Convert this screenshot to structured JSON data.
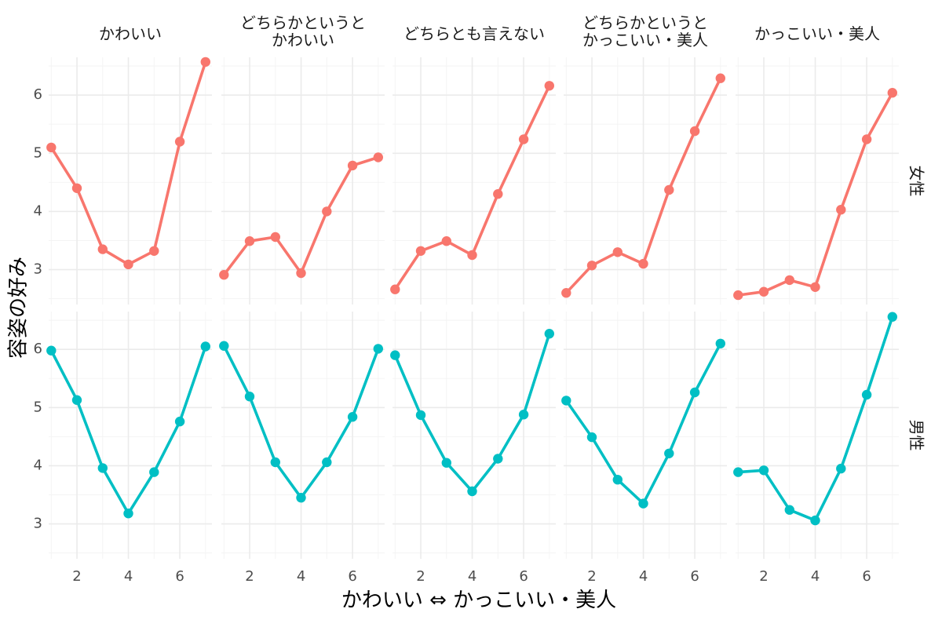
{
  "chart_data": {
    "type": "line",
    "xlabel": "かわいい ⇔ かっこいい・美人",
    "ylabel": "容姿の好み",
    "x_ticks": [
      2,
      4,
      6
    ],
    "y_ticks": [
      3,
      4,
      5,
      6
    ],
    "xlim": [
      0.9,
      7.25
    ],
    "ylim": [
      2.4,
      6.65
    ],
    "grid": true,
    "column_facets": [
      "かわいい",
      "どちらかというと\nかわいい",
      "どちらとも言えない",
      "どちらかというと\nかっこいい・美人",
      "かっこいい・美人"
    ],
    "row_facets": [
      "女性",
      "男性"
    ],
    "colors": {
      "女性": "#F8766D",
      "男性": "#00BFC4"
    },
    "x": [
      1,
      2,
      3,
      4,
      5,
      6,
      7
    ],
    "panels": [
      {
        "row": "女性",
        "col": "かわいい",
        "values": [
          5.1,
          4.4,
          3.35,
          3.09,
          3.32,
          5.2,
          6.57
        ]
      },
      {
        "row": "女性",
        "col": "どちらかというと\nかわいい",
        "values": [
          2.91,
          3.49,
          3.56,
          2.94,
          4.0,
          4.79,
          4.93
        ]
      },
      {
        "row": "女性",
        "col": "どちらとも言えない",
        "values": [
          2.66,
          3.32,
          3.49,
          3.25,
          4.3,
          5.24,
          6.16
        ]
      },
      {
        "row": "女性",
        "col": "どちらかというと\nかっこいい・美人",
        "values": [
          2.6,
          3.07,
          3.3,
          3.1,
          4.37,
          5.38,
          6.29
        ]
      },
      {
        "row": "女性",
        "col": "かっこいい・美人",
        "values": [
          2.56,
          2.62,
          2.82,
          2.7,
          4.03,
          5.24,
          6.04
        ]
      },
      {
        "row": "男性",
        "col": "かわいい",
        "values": [
          5.98,
          5.13,
          3.96,
          3.18,
          3.89,
          4.76,
          6.05
        ]
      },
      {
        "row": "男性",
        "col": "どちらかというと\nかわいい",
        "values": [
          6.06,
          5.19,
          4.06,
          3.45,
          4.06,
          4.84,
          6.01
        ]
      },
      {
        "row": "男性",
        "col": "どちらとも言えない",
        "values": [
          5.9,
          4.87,
          4.05,
          3.56,
          4.12,
          4.88,
          6.27
        ]
      },
      {
        "row": "男性",
        "col": "どちらかというと\nかっこいい・美人",
        "values": [
          5.12,
          4.49,
          3.76,
          3.35,
          4.21,
          5.26,
          6.1
        ]
      },
      {
        "row": "男性",
        "col": "かっこいい・美人",
        "values": [
          3.89,
          3.92,
          3.24,
          3.06,
          3.95,
          5.22,
          6.56
        ]
      }
    ]
  }
}
